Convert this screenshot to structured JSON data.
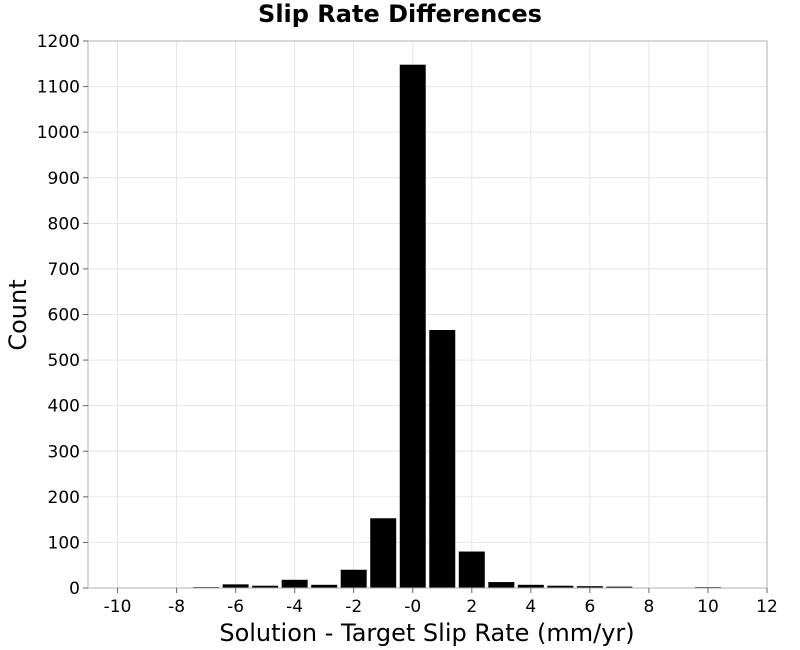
{
  "chart_data": {
    "type": "bar",
    "title": "Slip Rate Differences",
    "xlabel": "Solution - Target Slip Rate (mm/yr)",
    "ylabel": "Count",
    "xlim": [
      -11,
      12
    ],
    "ylim": [
      0,
      1200
    ],
    "xticks": [
      -10,
      -8,
      -6,
      -4,
      -2,
      0,
      2,
      4,
      6,
      8,
      10,
      12
    ],
    "xtick_labels": [
      "-10",
      "-8",
      "-6",
      "-4",
      "-2",
      "-0",
      "2",
      "4",
      "6",
      "8",
      "10",
      "12"
    ],
    "yticks": [
      0,
      100,
      200,
      300,
      400,
      500,
      600,
      700,
      800,
      900,
      1000,
      1100,
      1200
    ],
    "bin_width": 1,
    "grid": true,
    "bar_color": "#000000",
    "bars": [
      {
        "x": -10,
        "value": 0
      },
      {
        "x": -9,
        "value": 0
      },
      {
        "x": -8,
        "value": 0
      },
      {
        "x": -7,
        "value": 2
      },
      {
        "x": -6,
        "value": 8
      },
      {
        "x": -5,
        "value": 5
      },
      {
        "x": -4,
        "value": 18
      },
      {
        "x": -3,
        "value": 7
      },
      {
        "x": -2,
        "value": 40
      },
      {
        "x": -1,
        "value": 153
      },
      {
        "x": 0,
        "value": 1148
      },
      {
        "x": 1,
        "value": 566
      },
      {
        "x": 2,
        "value": 80
      },
      {
        "x": 3,
        "value": 13
      },
      {
        "x": 4,
        "value": 7
      },
      {
        "x": 5,
        "value": 5
      },
      {
        "x": 6,
        "value": 4
      },
      {
        "x": 7,
        "value": 3
      },
      {
        "x": 8,
        "value": 1
      },
      {
        "x": 9,
        "value": 0
      },
      {
        "x": 10,
        "value": 2
      },
      {
        "x": 11,
        "value": 1
      }
    ]
  }
}
